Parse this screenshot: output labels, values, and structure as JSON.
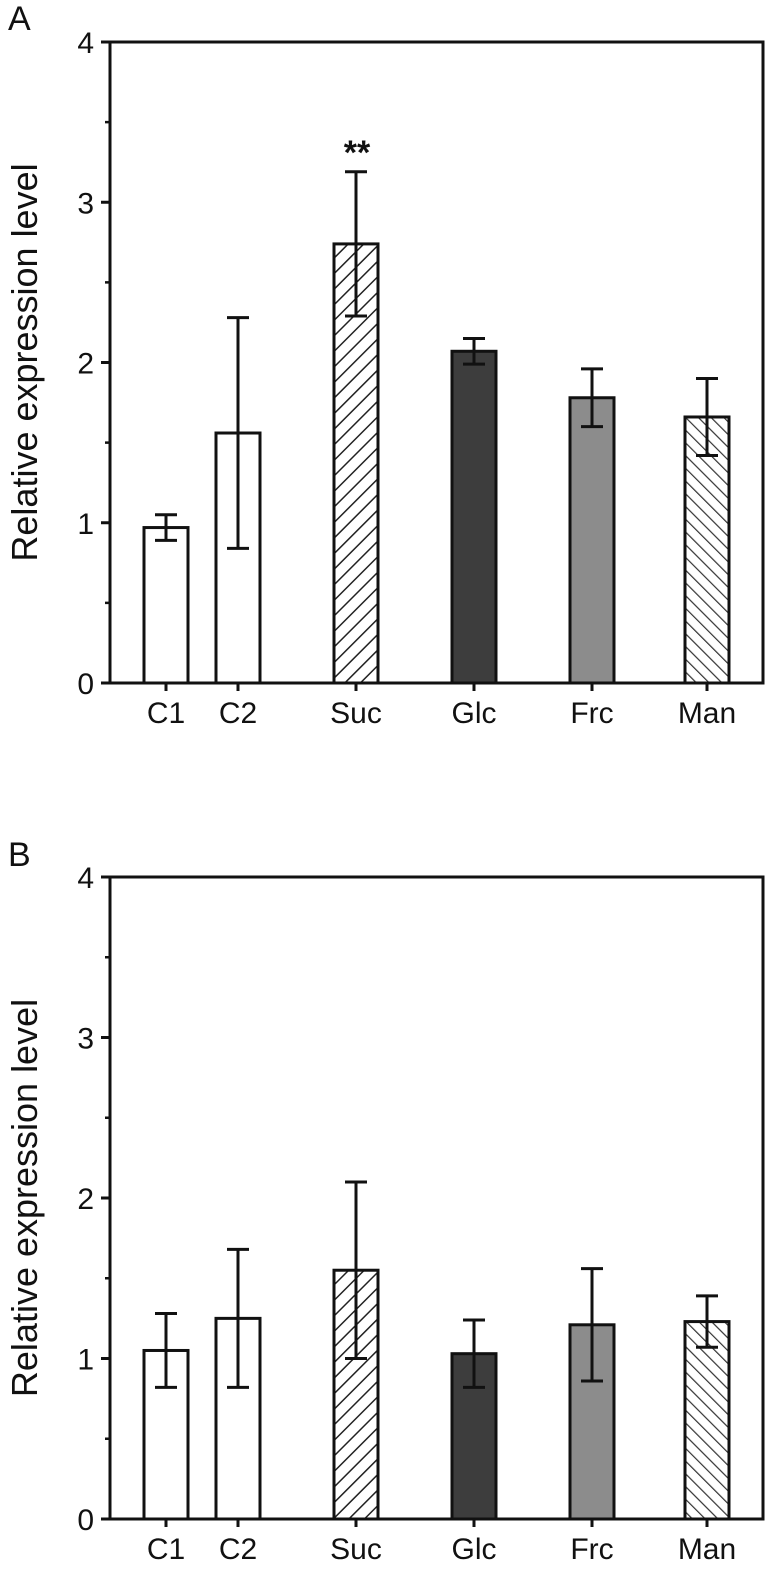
{
  "colors": {
    "frame": "#111111",
    "white_bar": "#ffffff",
    "dark_bar": "#3d3d3d",
    "gray_bar": "#8c8c8c",
    "hatch": "#222222"
  },
  "chart_data": [
    {
      "type": "bar",
      "panel_label": "A",
      "ylabel": "Relative expression level",
      "xlabel": "",
      "ylim": [
        0,
        4
      ],
      "yticks": [
        "0",
        "1",
        "2",
        "3",
        "4"
      ],
      "categories": [
        "C1",
        "C2",
        "Suc",
        "Glc",
        "Frc",
        "Man"
      ],
      "values": [
        0.97,
        1.56,
        2.74,
        2.07,
        1.78,
        1.66
      ],
      "errors": [
        0.08,
        0.72,
        0.45,
        0.08,
        0.18,
        0.24
      ],
      "styles": [
        "white",
        "white",
        "hatch-forward",
        "dark",
        "gray",
        "hatch-back"
      ],
      "annotations": [
        "",
        "",
        "**",
        "",
        "",
        ""
      ]
    },
    {
      "type": "bar",
      "panel_label": "B",
      "ylabel": "Relative expression level",
      "xlabel": "",
      "ylim": [
        0,
        4
      ],
      "yticks": [
        "0",
        "1",
        "2",
        "3",
        "4"
      ],
      "categories": [
        "C1",
        "C2",
        "Suc",
        "Glc",
        "Frc",
        "Man"
      ],
      "values": [
        1.05,
        1.25,
        1.55,
        1.03,
        1.21,
        1.23
      ],
      "errors": [
        0.23,
        0.43,
        0.55,
        0.21,
        0.35,
        0.16
      ],
      "styles": [
        "white",
        "white",
        "hatch-forward",
        "dark",
        "gray",
        "hatch-back"
      ],
      "annotations": [
        "",
        "",
        "",
        "",
        "",
        ""
      ]
    }
  ]
}
